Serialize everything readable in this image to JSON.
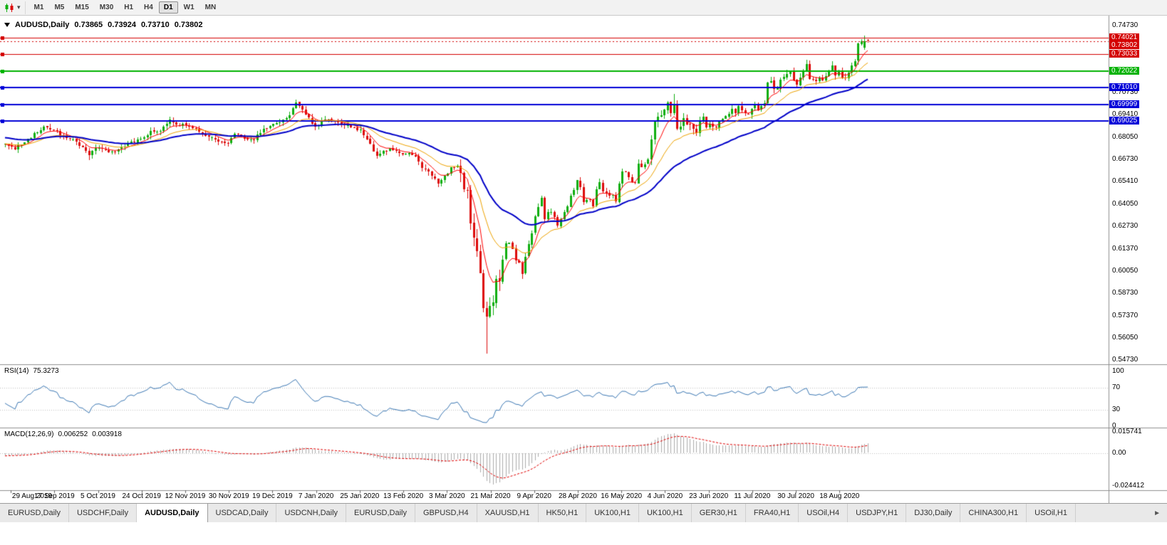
{
  "toolbar": {
    "dropdown_icon": "▾",
    "periods": [
      "M1",
      "M5",
      "M15",
      "M30",
      "H1",
      "H4",
      "D1",
      "W1",
      "MN"
    ],
    "active_period": "D1"
  },
  "chart": {
    "symbol_title": "AUDUSD,Daily",
    "ohlc": {
      "open": "0.73865",
      "high": "0.73924",
      "low": "0.73710",
      "close": "0.73802"
    },
    "price_axis_labels": [
      "0.74730",
      "0.73410",
      "0.70730",
      "0.69410",
      "0.68050",
      "0.66730",
      "0.65410",
      "0.64050",
      "0.62730",
      "0.61370",
      "0.60050",
      "0.58730",
      "0.57370",
      "0.56050",
      "0.54730"
    ],
    "hlines": [
      {
        "price": 0.74021,
        "label": "0.74021",
        "color": "#d40000",
        "width": 1
      },
      {
        "price": 0.73033,
        "label": "0.73033",
        "color": "#d40000",
        "width": 1
      },
      {
        "price": 0.72022,
        "label": "0.72022",
        "color": "#00b200",
        "width": 2
      },
      {
        "price": 0.7101,
        "label": "0.71010",
        "color": "#0000d8",
        "width": 2
      },
      {
        "price": 0.69999,
        "label": "0.69999",
        "color": "#0000d8",
        "width": 2
      },
      {
        "price": 0.69025,
        "label": "0.69025",
        "color": "#0000d8",
        "width": 2
      }
    ],
    "current_price_badge": {
      "value": 0.73802,
      "text": "0.73802",
      "color": "#d40000"
    },
    "colors": {
      "up": "#0fae0f",
      "down": "#dd0b0b",
      "axis_text": "#000000",
      "separator": "#909090"
    }
  },
  "rsi_panel": {
    "name": "RSI(14)",
    "value": "75.3273",
    "axis_labels": [
      "100",
      "70",
      "30",
      "0"
    ],
    "dotted_levels": [
      70,
      30
    ],
    "color": "#3c78b4"
  },
  "macd_panel": {
    "name": "MACD(12,26,9)",
    "value_main": "0.006252",
    "value_signal": "0.003918",
    "axis_labels": [
      "0.015741",
      "0.00",
      "-0.024412"
    ],
    "max": 0.015741,
    "min": -0.024412,
    "histogram_color": "#ababab",
    "signal_color": "#e00000"
  },
  "tabs": {
    "items": [
      "EURUSD,Daily",
      "USDCHF,Daily",
      "AUDUSD,Daily",
      "USDCAD,Daily",
      "USDCNH,Daily",
      "EURUSD,Daily",
      "GBPUSD,H4",
      "XAUUSD,H1",
      "HK50,H1",
      "UK100,H1",
      "UK100,H1",
      "GER30,H1",
      "FRA40,H1",
      "USOil,H4",
      "USDJPY,H1",
      "DJ30,Daily",
      "CHINA300,H1",
      "USOil,H1"
    ],
    "active_index": 2,
    "scroll_right_icon": "►"
  },
  "chart_data": {
    "type": "candlestick",
    "symbol": "AUDUSD",
    "timeframe": "Daily",
    "title": "AUDUSD,Daily",
    "ylim": [
      0.5473,
      0.7473
    ],
    "x_tick_labels": [
      "29 Aug 2019",
      "17 Sep 2019",
      "5 Oct 2019",
      "24 Oct 2019",
      "12 Nov 2019",
      "30 Nov 2019",
      "19 Dec 2019",
      "7 Jan 2020",
      "25 Jan 2020",
      "13 Feb 2020",
      "3 Mar 2020",
      "21 Mar 2020",
      "9 Apr 2020",
      "28 Apr 2020",
      "16 May 2020",
      "4 Jun 2020",
      "23 Jun 2020",
      "11 Jul 2020",
      "30 Jul 2020",
      "18 Aug 2020"
    ],
    "x_tick_first_index": 2,
    "x_tick_step": 13.5,
    "candle_count": 268,
    "warmup_start": -45,
    "seed": 20200902,
    "last_bar": {
      "open": 0.73865,
      "high": 0.73924,
      "low": 0.7371,
      "close": 0.73802
    },
    "hline_prices": [
      0.74021,
      0.73033,
      0.72022,
      0.7101,
      0.69999,
      0.69025
    ],
    "close_anchors": [
      [
        -45,
        0.699
      ],
      [
        -40,
        0.696
      ],
      [
        -35,
        0.688
      ],
      [
        -30,
        0.6832
      ],
      [
        -26,
        0.68
      ],
      [
        -22,
        0.6755
      ],
      [
        -18,
        0.67
      ],
      [
        -14,
        0.6758
      ],
      [
        -10,
        0.6782
      ],
      [
        -6,
        0.6768
      ],
      [
        -3,
        0.6745
      ],
      [
        0,
        0.676
      ],
      [
        3,
        0.6737
      ],
      [
        7,
        0.6792
      ],
      [
        12,
        0.6868
      ],
      [
        14,
        0.6848
      ],
      [
        16,
        0.6838
      ],
      [
        18,
        0.6808
      ],
      [
        21,
        0.6788
      ],
      [
        24,
        0.6742
      ],
      [
        26,
        0.6702
      ],
      [
        28,
        0.6745
      ],
      [
        31,
        0.6722
      ],
      [
        34,
        0.6714
      ],
      [
        38,
        0.677
      ],
      [
        42,
        0.679
      ],
      [
        45,
        0.6838
      ],
      [
        48,
        0.6852
      ],
      [
        51,
        0.6905
      ],
      [
        53,
        0.6882
      ],
      [
        56,
        0.688
      ],
      [
        58,
        0.6858
      ],
      [
        60,
        0.6842
      ],
      [
        63,
        0.6806
      ],
      [
        66,
        0.6786
      ],
      [
        69,
        0.677
      ],
      [
        71,
        0.682
      ],
      [
        74,
        0.6802
      ],
      [
        77,
        0.6796
      ],
      [
        80,
        0.6856
      ],
      [
        83,
        0.6882
      ],
      [
        86,
        0.6906
      ],
      [
        88,
        0.6936
      ],
      [
        90,
        0.701
      ],
      [
        91,
        0.6985
      ],
      [
        93,
        0.6945
      ],
      [
        96,
        0.687
      ],
      [
        99,
        0.6906
      ],
      [
        102,
        0.69
      ],
      [
        105,
        0.688
      ],
      [
        108,
        0.6862
      ],
      [
        110,
        0.6846
      ],
      [
        111,
        0.6812
      ],
      [
        113,
        0.6762
      ],
      [
        115,
        0.6692
      ],
      [
        117,
        0.6722
      ],
      [
        119,
        0.6736
      ],
      [
        121,
        0.6716
      ],
      [
        123,
        0.6702
      ],
      [
        125,
        0.6716
      ],
      [
        127,
        0.6686
      ],
      [
        129,
        0.6626
      ],
      [
        131,
        0.6606
      ],
      [
        133,
        0.6556
      ],
      [
        134,
        0.6522
      ],
      [
        135,
        0.6552
      ],
      [
        137,
        0.6592
      ],
      [
        138,
        0.6622
      ],
      [
        140,
        0.6642
      ],
      [
        141,
        0.6586
      ],
      [
        142,
        0.6502
      ],
      [
        143,
        0.649
      ],
      [
        144,
        0.6292
      ],
      [
        145,
        0.6192
      ],
      [
        146,
        0.6122
      ],
      [
        147,
        0.5996
      ],
      [
        148,
        0.5792
      ],
      [
        149,
        0.5742
      ],
      [
        150,
        0.58
      ],
      [
        151,
        0.5826
      ],
      [
        152,
        0.5962
      ],
      [
        153,
        0.5952
      ],
      [
        154,
        0.6066
      ],
      [
        155,
        0.6172
      ],
      [
        156,
        0.617
      ],
      [
        157,
        0.6136
      ],
      [
        158,
        0.6072
      ],
      [
        159,
        0.6062
      ],
      [
        160,
        0.5998
      ],
      [
        161,
        0.6088
      ],
      [
        162,
        0.6166
      ],
      [
        163,
        0.6234
      ],
      [
        164,
        0.6338
      ],
      [
        165,
        0.6388
      ],
      [
        166,
        0.6436
      ],
      [
        167,
        0.6324
      ],
      [
        168,
        0.6358
      ],
      [
        169,
        0.6366
      ],
      [
        170,
        0.6334
      ],
      [
        171,
        0.6268
      ],
      [
        172,
        0.6322
      ],
      [
        173,
        0.6366
      ],
      [
        174,
        0.6394
      ],
      [
        175,
        0.6464
      ],
      [
        176,
        0.6486
      ],
      [
        177,
        0.6549
      ],
      [
        178,
        0.651
      ],
      [
        179,
        0.6416
      ],
      [
        180,
        0.6428
      ],
      [
        181,
        0.6434
      ],
      [
        182,
        0.64
      ],
      [
        183,
        0.6494
      ],
      [
        184,
        0.6532
      ],
      [
        185,
        0.6486
      ],
      [
        186,
        0.647
      ],
      [
        187,
        0.645
      ],
      [
        188,
        0.646
      ],
      [
        189,
        0.6416
      ],
      [
        190,
        0.6528
      ],
      [
        191,
        0.6596
      ],
      [
        192,
        0.66
      ],
      [
        193,
        0.6566
      ],
      [
        194,
        0.6538
      ],
      [
        195,
        0.654
      ],
      [
        196,
        0.665
      ],
      [
        197,
        0.6626
      ],
      [
        198,
        0.6638
      ],
      [
        199,
        0.6668
      ],
      [
        200,
        0.6798
      ],
      [
        201,
        0.6896
      ],
      [
        202,
        0.6922
      ],
      [
        203,
        0.6938
      ],
      [
        204,
        0.6968
      ],
      [
        205,
        0.7019
      ],
      [
        206,
        0.6958
      ],
      [
        207,
        0.7
      ],
      [
        208,
        0.685
      ],
      [
        209,
        0.6868
      ],
      [
        210,
        0.692
      ],
      [
        211,
        0.6886
      ],
      [
        212,
        0.6878
      ],
      [
        213,
        0.6854
      ],
      [
        214,
        0.6834
      ],
      [
        215,
        0.6906
      ],
      [
        216,
        0.6932
      ],
      [
        217,
        0.687
      ],
      [
        218,
        0.6886
      ],
      [
        219,
        0.6864
      ],
      [
        220,
        0.6866
      ],
      [
        221,
        0.6904
      ],
      [
        222,
        0.6916
      ],
      [
        223,
        0.6926
      ],
      [
        224,
        0.6944
      ],
      [
        225,
        0.6976
      ],
      [
        226,
        0.6946
      ],
      [
        227,
        0.6986
      ],
      [
        228,
        0.6962
      ],
      [
        229,
        0.695
      ],
      [
        230,
        0.6938
      ],
      [
        231,
        0.6974
      ],
      [
        232,
        0.7006
      ],
      [
        233,
        0.6964
      ],
      [
        234,
        0.6998
      ],
      [
        235,
        0.7012
      ],
      [
        236,
        0.7128
      ],
      [
        237,
        0.7143
      ],
      [
        238,
        0.7096
      ],
      [
        239,
        0.7106
      ],
      [
        240,
        0.7152
      ],
      [
        241,
        0.7168
      ],
      [
        242,
        0.719
      ],
      [
        243,
        0.7194
      ],
      [
        244,
        0.7143
      ],
      [
        245,
        0.7121
      ],
      [
        246,
        0.7157
      ],
      [
        247,
        0.7199
      ],
      [
        248,
        0.7237
      ],
      [
        249,
        0.7157
      ],
      [
        250,
        0.7149
      ],
      [
        251,
        0.7144
      ],
      [
        252,
        0.7165
      ],
      [
        253,
        0.7148
      ],
      [
        254,
        0.7172
      ],
      [
        255,
        0.7204
      ],
      [
        256,
        0.7236
      ],
      [
        257,
        0.7176
      ],
      [
        258,
        0.7198
      ],
      [
        259,
        0.716
      ],
      [
        260,
        0.7159
      ],
      [
        261,
        0.7193
      ],
      [
        262,
        0.7235
      ],
      [
        263,
        0.7264
      ],
      [
        264,
        0.7364
      ],
      [
        265,
        0.7375
      ],
      [
        266,
        0.73745
      ],
      [
        267,
        0.73802
      ]
    ],
    "wick_lows": [
      [
        26,
        0.667
      ],
      [
        115,
        0.6678
      ],
      [
        149,
        0.551
      ],
      [
        160,
        0.596
      ]
    ],
    "wick_highs": [
      [
        90,
        0.7032
      ],
      [
        207,
        0.7064
      ],
      [
        266,
        0.74136
      ]
    ],
    "forced_opens": [
      [
        266,
        0.7341
      ]
    ],
    "indicators": {
      "rsi_period": 14,
      "macd": [
        12,
        26,
        9
      ],
      "ma": [
        {
          "period": 7,
          "method": "ema",
          "color": "#ff0000",
          "width": 1
        },
        {
          "period": 18,
          "method": "ema",
          "color": "#eea200",
          "width": 1
        },
        {
          "period": 40,
          "method": "ema",
          "color": "#0000c8",
          "width": 2
        }
      ]
    }
  }
}
